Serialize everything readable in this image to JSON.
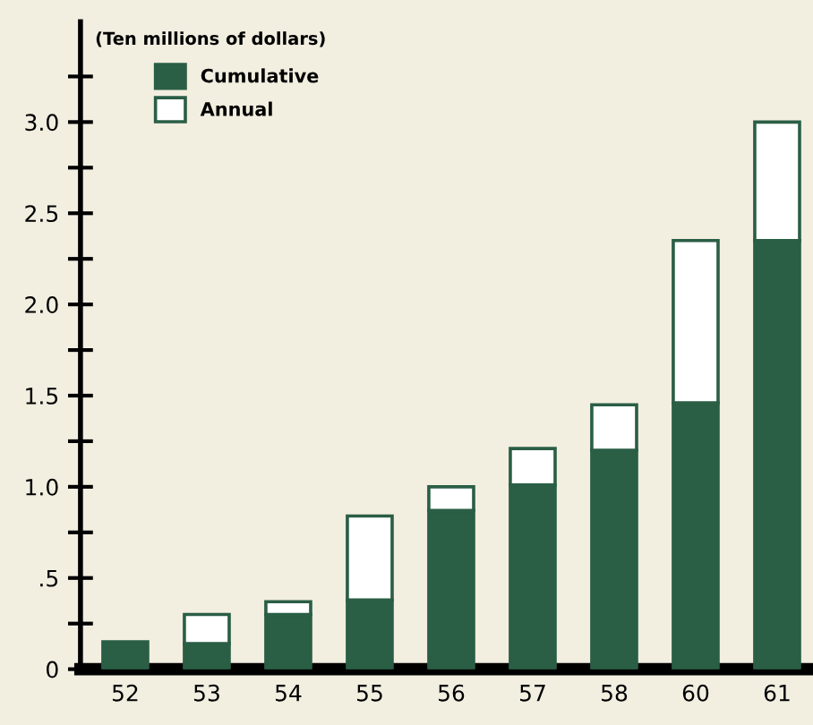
{
  "chart_data": {
    "type": "bar",
    "stacked": true,
    "ylabel": "(Ten millions of dollars)",
    "categories": [
      "52",
      "53",
      "54",
      "55",
      "56",
      "57",
      "58",
      "60",
      "61"
    ],
    "series": [
      {
        "name": "Cumulative",
        "color": "#2a5e45",
        "values": [
          0.15,
          0.14,
          0.3,
          0.38,
          0.87,
          1.01,
          1.2,
          1.46,
          2.35
        ]
      },
      {
        "name": "Annual",
        "color": "#ffffff",
        "values": [
          null,
          0.16,
          0.07,
          0.46,
          0.13,
          0.2,
          0.25,
          0.89,
          0.65
        ]
      }
    ],
    "ylim": [
      0,
      3.55
    ],
    "yticks": [
      0,
      {
        "value": 0.25,
        "label": null
      },
      {
        "value": 0.5,
        "label": ".5"
      },
      {
        "value": 0.75,
        "label": null
      },
      {
        "value": 1.0,
        "label": "1.0"
      },
      {
        "value": 1.25,
        "label": null
      },
      {
        "value": 1.5,
        "label": "1.5"
      },
      {
        "value": 1.75,
        "label": null
      },
      {
        "value": 2.0,
        "label": "2.0"
      },
      {
        "value": 2.25,
        "label": null
      },
      {
        "value": 2.5,
        "label": "2.5"
      },
      {
        "value": 2.75,
        "label": null
      },
      {
        "value": 3.0,
        "label": "3.0"
      },
      {
        "value": 3.25,
        "label": null
      }
    ],
    "grid": false,
    "legend": "top left"
  }
}
